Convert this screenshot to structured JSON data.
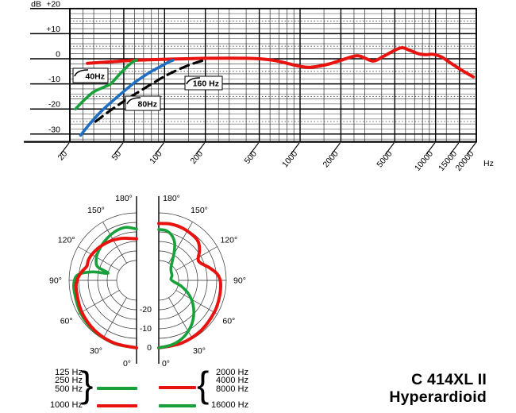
{
  "colors": {
    "red": "#e8120e",
    "green": "#18a03a",
    "blue": "#1e6ec2",
    "black": "#000000",
    "grid_major": "#000000",
    "grid_minor": "#333333"
  },
  "title": {
    "model": "C 414XL II",
    "pattern": "Hyperardioid"
  },
  "legend": {
    "brace_left": "}",
    "brace_right": "{",
    "low_group": {
      "labels": [
        "125 Hz",
        "250 Hz",
        "500 Hz"
      ],
      "color": "green"
    },
    "mid_label": "1000 Hz",
    "mid_color": "red",
    "high_group": {
      "labels": [
        "2000 Hz",
        "4000 Hz",
        "8000 Hz"
      ],
      "color": "red"
    },
    "top_label": "16000 Hz",
    "top_color": "green"
  },
  "chart_data": [
    {
      "type": "line",
      "name": "frequency-response",
      "y_unit_label": "dB",
      "x_unit_label": "Hz",
      "x_scale": "log",
      "xlim": [
        20,
        20000
      ],
      "ylim": [
        -33,
        20
      ],
      "y_major_ticks": [
        {
          "db": 20,
          "label": "+20"
        },
        {
          "db": 10,
          "label": "+10"
        },
        {
          "db": 0,
          "label": "0"
        },
        {
          "db": -10,
          "label": "-10"
        },
        {
          "db": -20,
          "label": "-20"
        },
        {
          "db": -30,
          "label": "-30"
        }
      ],
      "y_minor_step_db": 2,
      "y_dotted_lines_db": [
        15,
        5,
        -5,
        -15,
        -25
      ],
      "x_labeled_ticks": [
        {
          "f": 20,
          "label": "20"
        },
        {
          "f": 50,
          "label": "50"
        },
        {
          "f": 100,
          "label": "100"
        },
        {
          "f": 200,
          "label": "200"
        },
        {
          "f": 500,
          "label": "500"
        },
        {
          "f": 1000,
          "label": "1000"
        },
        {
          "f": 2000,
          "label": "2000"
        },
        {
          "f": 5000,
          "label": "5000"
        },
        {
          "f": 10000,
          "label": "10000"
        },
        {
          "f": 15000,
          "label": "15000"
        },
        {
          "f": 20000,
          "label": "20000"
        }
      ],
      "x_minor_gridlines": [
        25,
        30,
        40,
        60,
        70,
        80,
        90,
        150,
        250,
        300,
        400,
        600,
        700,
        800,
        900,
        1500,
        2500,
        3000,
        4000,
        6000,
        7000,
        8000,
        9000,
        12000
      ],
      "series": [
        {
          "name": "main-response",
          "color": "red",
          "line": "solid",
          "width": 4,
          "points": [
            [
              27,
              -1.8
            ],
            [
              40,
              -1.2
            ],
            [
              60,
              -0.6
            ],
            [
              100,
              -0.2
            ],
            [
              200,
              0.2
            ],
            [
              400,
              0.2
            ],
            [
              600,
              -0.4
            ],
            [
              800,
              -1.8
            ],
            [
              1000,
              -3
            ],
            [
              1200,
              -3.4
            ],
            [
              1600,
              -2.2
            ],
            [
              2000,
              -0.6
            ],
            [
              2600,
              1.2
            ],
            [
              3000,
              0.3
            ],
            [
              3500,
              -0.9
            ],
            [
              4200,
              1.2
            ],
            [
              5500,
              4.3
            ],
            [
              6500,
              3.3
            ],
            [
              7500,
              2
            ],
            [
              8500,
              1.6
            ],
            [
              9500,
              1.8
            ],
            [
              11000,
              0.8
            ],
            [
              13000,
              -1.8
            ],
            [
              15000,
              -4
            ],
            [
              17000,
              -5.8
            ],
            [
              19000,
              -7.2
            ]
          ]
        },
        {
          "name": "lowcut-40hz",
          "label": "40Hz",
          "color": "green",
          "line": "solid",
          "width": 3.6,
          "points": [
            [
              22,
              -20
            ],
            [
              26,
              -16
            ],
            [
              30,
              -13.2
            ],
            [
              36,
              -11.2
            ],
            [
              40,
              -10
            ],
            [
              46,
              -6.5
            ],
            [
              52,
              -3.5
            ],
            [
              58,
              -1.3
            ],
            [
              62,
              -0.5
            ]
          ]
        },
        {
          "name": "lowcut-80hz",
          "label": "80Hz",
          "color": "blue",
          "line": "solid",
          "width": 3.6,
          "points": [
            [
              24,
              -30.5
            ],
            [
              28,
              -26
            ],
            [
              34,
              -21
            ],
            [
              40,
              -17.5
            ],
            [
              50,
              -13
            ],
            [
              60,
              -9.5
            ],
            [
              70,
              -7
            ],
            [
              80,
              -5
            ],
            [
              90,
              -3.5
            ],
            [
              100,
              -2.2
            ],
            [
              108,
              -1.2
            ],
            [
              115,
              -0.6
            ]
          ]
        },
        {
          "name": "lowcut-160hz",
          "label": "160 Hz",
          "color": "black",
          "line": "dashed",
          "width": 3.2,
          "points": [
            [
              31,
              -25
            ],
            [
              40,
              -20.5
            ],
            [
              55,
              -15.5
            ],
            [
              75,
              -11
            ],
            [
              100,
              -7
            ],
            [
              130,
              -4
            ],
            [
              165,
              -1.8
            ],
            [
              205,
              -0.3
            ]
          ]
        }
      ],
      "filter_labels": [
        {
          "text": "40Hz",
          "x": 92,
          "y": 86,
          "w": 44,
          "h": 18
        },
        {
          "text": "80Hz",
          "x": 158,
          "y": 121,
          "w": 44,
          "h": 18
        },
        {
          "text": "160 Hz",
          "x": 233,
          "y": 96,
          "w": 47,
          "h": 17
        }
      ]
    },
    {
      "type": "polar",
      "name": "polar-pattern",
      "rings_db": [
        0,
        -5,
        -10,
        -15,
        -20,
        -25
      ],
      "spoke_step_deg": 30,
      "r_axis_labels": [
        {
          "db": -20,
          "label": "-20"
        },
        {
          "db": -10,
          "label": "-10"
        },
        {
          "db": 0,
          "label": "0"
        }
      ],
      "angle_labels": [
        "180°",
        "150°",
        "120°",
        "90°",
        "60°",
        "30°",
        "0°"
      ],
      "angle_values": [
        180,
        150,
        120,
        90,
        60,
        30,
        0
      ],
      "halves": [
        {
          "side": "left",
          "series": [
            {
              "name": "pattern-125-500hz",
              "legend": "125 Hz / 250 Hz / 500 Hz",
              "color": "green",
              "width": 3.6,
              "points_deg_db": [
                [
                  0,
                  0
                ],
                [
                  20,
                  -0.3
                ],
                [
                  40,
                  -0.8
                ],
                [
                  60,
                  -1.4
                ],
                [
                  80,
                  -2.2
                ],
                [
                  90,
                  -2.8
                ],
                [
                  96,
                  -5
                ],
                [
                  101,
                  -12
                ],
                [
                  104,
                  -20
                ],
                [
                  109,
                  -14
                ],
                [
                  115,
                  -12
                ],
                [
                  125,
                  -10.5
                ],
                [
                  140,
                  -9
                ],
                [
                  155,
                  -7.5
                ],
                [
                  168,
                  -7
                ],
                [
                  180,
                  -8.5
                ]
              ]
            },
            {
              "name": "pattern-1000hz",
              "legend": "1000 Hz",
              "color": "red",
              "width": 4,
              "points_deg_db": [
                [
                  0,
                  0
                ],
                [
                  20,
                  -0.5
                ],
                [
                  40,
                  -1.2
                ],
                [
                  60,
                  -2.2
                ],
                [
                  80,
                  -3.4
                ],
                [
                  90,
                  -4.2
                ],
                [
                  98,
                  -6
                ],
                [
                  106,
                  -8.3
                ],
                [
                  112,
                  -8
                ],
                [
                  120,
                  -8.3
                ],
                [
                  132,
                  -9.3
                ],
                [
                  146,
                  -10.6
                ],
                [
                  160,
                  -12
                ],
                [
                  172,
                  -13.2
                ],
                [
                  180,
                  -13.6
                ]
              ]
            }
          ]
        },
        {
          "side": "right",
          "series": [
            {
              "name": "pattern-2000-8000hz",
              "legend": "2000 Hz / 4000 Hz / 8000 Hz",
              "color": "red",
              "width": 4,
              "points_deg_db": [
                [
                  0,
                  0
                ],
                [
                  20,
                  -0.4
                ],
                [
                  40,
                  -1
                ],
                [
                  60,
                  -1.8
                ],
                [
                  75,
                  -2.4
                ],
                [
                  88,
                  -3
                ],
                [
                  96,
                  -4.5
                ],
                [
                  104,
                  -8
                ],
                [
                  112,
                  -11.5
                ],
                [
                  118,
                  -12
                ],
                [
                  126,
                  -9
                ],
                [
                  134,
                  -6.5
                ],
                [
                  142,
                  -5.8
                ],
                [
                  155,
                  -5.3
                ],
                [
                  168,
                  -5.2
                ],
                [
                  180,
                  -5.6
                ]
              ]
            },
            {
              "name": "pattern-16000hz",
              "legend": "16000 Hz",
              "color": "green",
              "width": 3.6,
              "points_deg_db": [
                [
                  0,
                  0
                ],
                [
                  12,
                  -1
                ],
                [
                  24,
                  -3
                ],
                [
                  35,
                  -6
                ],
                [
                  45,
                  -9.5
                ],
                [
                  55,
                  -13.5
                ],
                [
                  65,
                  -18
                ],
                [
                  75,
                  -23
                ],
                [
                  85,
                  -27.5
                ],
                [
                  95,
                  -29
                ],
                [
                  110,
                  -28
                ],
                [
                  125,
                  -27.5
                ],
                [
                  137,
                  -26
                ],
                [
                  145,
                  -23
                ],
                [
                  152,
                  -18
                ],
                [
                  158,
                  -13.5
                ],
                [
                  165,
                  -10.5
                ],
                [
                  172,
                  -9
                ],
                [
                  180,
                  -8.7
                ]
              ]
            }
          ]
        }
      ]
    }
  ]
}
